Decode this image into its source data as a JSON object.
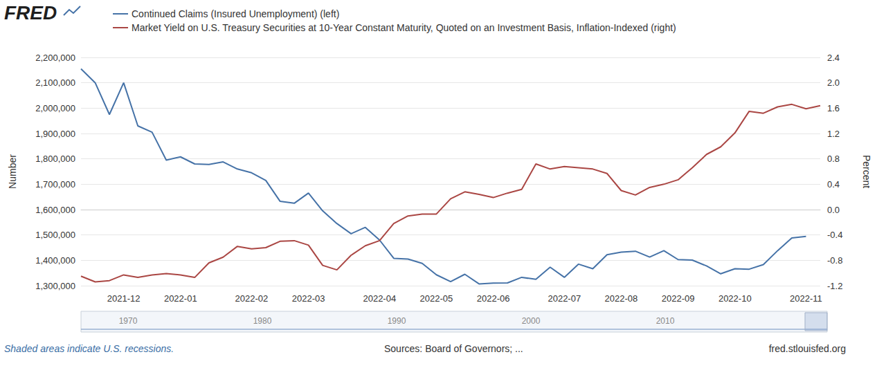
{
  "chart_data": {
    "type": "line",
    "logo": "FRED",
    "categories": [
      null,
      null,
      null,
      "2021-12",
      null,
      null,
      null,
      "2022-01",
      null,
      null,
      null,
      null,
      "2022-02",
      null,
      null,
      null,
      "2022-03",
      null,
      null,
      null,
      null,
      "2022-04",
      null,
      null,
      null,
      "2022-05",
      null,
      null,
      null,
      "2022-06",
      null,
      null,
      null,
      null,
      "2022-07",
      null,
      null,
      null,
      "2022-08",
      null,
      null,
      null,
      "2022-09",
      null,
      null,
      null,
      "2022-10",
      null,
      null,
      null,
      null,
      "2022-11",
      null
    ],
    "series": [
      {
        "name": "Continued Claims (Insured Unemployment) (left)",
        "color": "#4572a7",
        "values": [
          2155000,
          2100000,
          1975000,
          2100000,
          1930000,
          1905000,
          1795000,
          1808000,
          1780000,
          1778000,
          1788000,
          1760000,
          1745000,
          1715000,
          1633000,
          1625000,
          1665000,
          1595000,
          1545000,
          1505000,
          1530000,
          1480000,
          1408000,
          1405000,
          1388000,
          1343000,
          1316000,
          1345000,
          1307000,
          1310000,
          1311000,
          1333000,
          1325000,
          1373000,
          1333000,
          1385000,
          1367000,
          1422000,
          1432000,
          1436000,
          1413000,
          1438000,
          1403000,
          1401000,
          1378000,
          1347000,
          1367000,
          1365000,
          1383000,
          1438000,
          1488000,
          1494000,
          null
        ]
      },
      {
        "name": "Market Yield on U.S. Treasury Securities at 10-Year Constant Maturity, Quoted on an Investment Basis, Inflation-Indexed (right)",
        "color": "#aa4643",
        "axis": "y2",
        "values": [
          -1.05,
          -1.14,
          -1.12,
          -1.03,
          -1.07,
          -1.03,
          -1.01,
          -1.03,
          -1.07,
          -0.84,
          -0.75,
          -0.58,
          -0.62,
          -0.6,
          -0.5,
          -0.49,
          -0.56,
          -0.88,
          -0.95,
          -0.72,
          -0.57,
          -0.49,
          -0.22,
          -0.1,
          -0.07,
          -0.07,
          0.17,
          0.28,
          0.24,
          0.19,
          0.26,
          0.32,
          0.72,
          0.64,
          0.68,
          0.66,
          0.64,
          0.57,
          0.3,
          0.23,
          0.35,
          0.4,
          0.47,
          0.66,
          0.87,
          0.99,
          1.21,
          1.55,
          1.52,
          1.62,
          1.66,
          1.59,
          1.64
        ]
      }
    ],
    "y_label": "Number",
    "ylim": [
      1300000,
      2200000
    ],
    "yticks": [
      {
        "value": 1300000,
        "label": "1,300,000"
      },
      {
        "value": 1400000,
        "label": "1,400,000"
      },
      {
        "value": 1500000,
        "label": "1,500,000"
      },
      {
        "value": 1600000,
        "label": "1,600,000"
      },
      {
        "value": 1700000,
        "label": "1,700,000"
      },
      {
        "value": 1800000,
        "label": "1,800,000"
      },
      {
        "value": 1900000,
        "label": "1,900,000"
      },
      {
        "value": 2000000,
        "label": "2,000,000"
      },
      {
        "value": 2100000,
        "label": "2,100,000"
      },
      {
        "value": 2200000,
        "label": "2,200,000"
      }
    ],
    "y2_label": "Percent",
    "y2lim": [
      -1.2,
      2.4
    ],
    "y2ticks": [
      -1.2,
      -0.8,
      -0.4,
      {
        "value": 0,
        "label": "0.0"
      },
      0.4,
      0.8,
      1.2,
      1.6,
      {
        "value": 2,
        "label": "2.0"
      },
      2.4
    ],
    "grid": true,
    "legend": "top-left",
    "footer": {
      "note": "Shaded areas indicate U.S. recessions.",
      "source": "Sources: Board of Governors; ...",
      "site": "fred.stlouisfed.org"
    },
    "navigator_labels": [
      "1970",
      "1980",
      "1990",
      "2000",
      "2010"
    ]
  }
}
